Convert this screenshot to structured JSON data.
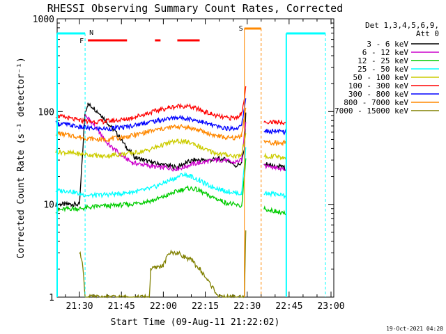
{
  "chart_data": {
    "type": "line",
    "title": "RHESSI Observing Summary Count Rates, Corrected",
    "xlabel": "Start Time (09-Aug-11 21:22:02)",
    "ylabel": "Corrected Count Rate (s⁻¹ detector⁻¹)",
    "y_scale": "log",
    "ylim": [
      1,
      1000
    ],
    "xlim_minutes": [
      21.3,
      22.8
    ],
    "x_ticks": [
      {
        "m": 30,
        "label": "21:30"
      },
      {
        "m": 45,
        "label": "21:45"
      },
      {
        "m": 60,
        "label": "22:00"
      },
      {
        "m": 75,
        "label": "22:15"
      },
      {
        "m": 90,
        "label": "22:30"
      },
      {
        "m": 105,
        "label": "22:45"
      },
      {
        "m": 120,
        "label": "23:00"
      }
    ],
    "y_ticks": [
      {
        "v": 1,
        "label": "1"
      },
      {
        "v": 10,
        "label": "10"
      },
      {
        "v": 100,
        "label": "100"
      },
      {
        "v": 1000,
        "label": "1000"
      }
    ],
    "legend_title": [
      "Det 1,3,4,5,6,9,",
      "Att 0"
    ],
    "series": [
      {
        "name": "3 - 6 keV",
        "color": "#000000",
        "points": [
          [
            21.5,
            10
          ],
          [
            26,
            10
          ],
          [
            27,
            10
          ],
          [
            28,
            10
          ],
          [
            30,
            10
          ],
          [
            32,
            100
          ],
          [
            33,
            120
          ],
          [
            35,
            110
          ],
          [
            38,
            90
          ],
          [
            41,
            70
          ],
          [
            44,
            55
          ],
          [
            47,
            40
          ],
          [
            50,
            32
          ],
          [
            53,
            30
          ],
          [
            56,
            28
          ],
          [
            59,
            27
          ],
          [
            62,
            26
          ],
          [
            65,
            25
          ],
          [
            68,
            28
          ],
          [
            71,
            30
          ],
          [
            74,
            30
          ],
          [
            77,
            30
          ],
          [
            80,
            31
          ],
          [
            83,
            30
          ],
          [
            86,
            26
          ],
          [
            88,
            28
          ],
          [
            89,
            40
          ],
          [
            89.5,
            100
          ]
        ],
        "segments2": [
          [
            96,
            28
          ],
          [
            100,
            26
          ],
          [
            103,
            25
          ],
          [
            104,
            24
          ]
        ]
      },
      {
        "name": "6 - 12 keV",
        "color": "#cc00cc",
        "points": [
          [
            32,
            90
          ],
          [
            34,
            80
          ],
          [
            37,
            60
          ],
          [
            40,
            45
          ],
          [
            43,
            38
          ],
          [
            46,
            32
          ],
          [
            49,
            28
          ],
          [
            52,
            27
          ],
          [
            55,
            26
          ],
          [
            58,
            25
          ],
          [
            61,
            25
          ],
          [
            64,
            24
          ],
          [
            67,
            25
          ],
          [
            70,
            27
          ],
          [
            73,
            28
          ],
          [
            76,
            29
          ],
          [
            79,
            30
          ],
          [
            82,
            30
          ],
          [
            85,
            28
          ],
          [
            88,
            30
          ],
          [
            89.5,
            80
          ]
        ],
        "segments2": [
          [
            96,
            26
          ],
          [
            100,
            25
          ],
          [
            103,
            24
          ],
          [
            104,
            23
          ]
        ]
      },
      {
        "name": "12 - 25 keV",
        "color": "#00cc00",
        "points": [
          [
            21.5,
            8.5
          ],
          [
            26,
            9
          ],
          [
            30,
            9
          ],
          [
            33,
            9.2
          ],
          [
            36,
            9.5
          ],
          [
            40,
            9.6
          ],
          [
            44,
            9.8
          ],
          [
            48,
            10
          ],
          [
            52,
            10.5
          ],
          [
            56,
            11
          ],
          [
            60,
            12
          ],
          [
            64,
            13.5
          ],
          [
            67,
            14.5
          ],
          [
            70,
            15
          ],
          [
            73,
            14
          ],
          [
            76,
            12.5
          ],
          [
            79,
            11.5
          ],
          [
            82,
            10.5
          ],
          [
            85,
            10
          ],
          [
            88,
            9.5
          ],
          [
            89.5,
            30
          ]
        ],
        "segments2": [
          [
            96,
            9
          ],
          [
            100,
            8.5
          ],
          [
            103,
            8
          ],
          [
            104,
            8
          ]
        ]
      },
      {
        "name": "25 - 50 keV",
        "color": "#00ffff",
        "points": [
          [
            21.5,
            14
          ],
          [
            26,
            14
          ],
          [
            30,
            13
          ],
          [
            33,
            12.5
          ],
          [
            36,
            12.5
          ],
          [
            40,
            12.8
          ],
          [
            44,
            13
          ],
          [
            48,
            13.5
          ],
          [
            52,
            14
          ],
          [
            56,
            15
          ],
          [
            60,
            17
          ],
          [
            64,
            19
          ],
          [
            67,
            21
          ],
          [
            70,
            20
          ],
          [
            73,
            18
          ],
          [
            76,
            16
          ],
          [
            79,
            15
          ],
          [
            82,
            14
          ],
          [
            85,
            13.5
          ],
          [
            88,
            13
          ],
          [
            89.5,
            40
          ]
        ],
        "segments2": [
          [
            96,
            13
          ],
          [
            100,
            13
          ],
          [
            103,
            12.5
          ],
          [
            104,
            12
          ]
        ]
      },
      {
        "name": "50 - 100 keV",
        "color": "#cccc00",
        "points": [
          [
            21.5,
            37
          ],
          [
            26,
            36
          ],
          [
            30,
            35
          ],
          [
            34,
            34
          ],
          [
            38,
            33
          ],
          [
            42,
            34
          ],
          [
            46,
            35
          ],
          [
            50,
            36
          ],
          [
            54,
            38
          ],
          [
            58,
            42
          ],
          [
            62,
            46
          ],
          [
            65,
            48
          ],
          [
            68,
            47
          ],
          [
            71,
            45
          ],
          [
            74,
            40
          ],
          [
            77,
            37
          ],
          [
            80,
            35
          ],
          [
            83,
            34
          ],
          [
            86,
            33
          ],
          [
            88,
            34
          ],
          [
            89.5,
            60
          ]
        ],
        "segments2": [
          [
            96,
            33
          ],
          [
            100,
            33
          ],
          [
            103,
            32
          ],
          [
            104,
            32
          ]
        ]
      },
      {
        "name": "100 - 300 keV",
        "color": "#ff0000",
        "points": [
          [
            21.5,
            90
          ],
          [
            26,
            85
          ],
          [
            30,
            80
          ],
          [
            34,
            78
          ],
          [
            38,
            78
          ],
          [
            42,
            80
          ],
          [
            46,
            82
          ],
          [
            50,
            88
          ],
          [
            54,
            95
          ],
          [
            58,
            103
          ],
          [
            62,
            110
          ],
          [
            65,
            114
          ],
          [
            68,
            115
          ],
          [
            71,
            110
          ],
          [
            74,
            102
          ],
          [
            77,
            94
          ],
          [
            80,
            88
          ],
          [
            83,
            85
          ],
          [
            86,
            86
          ],
          [
            88,
            95
          ],
          [
            89.5,
            180
          ]
        ],
        "segments2": [
          [
            96,
            78
          ],
          [
            100,
            77
          ],
          [
            103,
            76
          ],
          [
            104,
            76
          ]
        ]
      },
      {
        "name": "300 - 800 keV",
        "color": "#0000ff",
        "points": [
          [
            21.5,
            75
          ],
          [
            26,
            72
          ],
          [
            30,
            68
          ],
          [
            34,
            66
          ],
          [
            38,
            65
          ],
          [
            42,
            66
          ],
          [
            46,
            68
          ],
          [
            50,
            72
          ],
          [
            54,
            76
          ],
          [
            58,
            80
          ],
          [
            62,
            84
          ],
          [
            65,
            86
          ],
          [
            68,
            85
          ],
          [
            71,
            82
          ],
          [
            74,
            77
          ],
          [
            77,
            72
          ],
          [
            80,
            68
          ],
          [
            83,
            66
          ],
          [
            86,
            66
          ],
          [
            88,
            70
          ],
          [
            89.5,
            140
          ]
        ],
        "segments2": [
          [
            96,
            62
          ],
          [
            100,
            61
          ],
          [
            103,
            60
          ],
          [
            104,
            60
          ]
        ]
      },
      {
        "name": "800 - 7000 keV",
        "color": "#ff8800",
        "points": [
          [
            21.5,
            58
          ],
          [
            26,
            56
          ],
          [
            30,
            53
          ],
          [
            34,
            51
          ],
          [
            38,
            50
          ],
          [
            42,
            51
          ],
          [
            46,
            53
          ],
          [
            50,
            56
          ],
          [
            54,
            60
          ],
          [
            58,
            64
          ],
          [
            62,
            67
          ],
          [
            65,
            69
          ],
          [
            68,
            68
          ],
          [
            71,
            65
          ],
          [
            74,
            61
          ],
          [
            77,
            57
          ],
          [
            80,
            54
          ],
          [
            83,
            52
          ],
          [
            86,
            52
          ],
          [
            88,
            56
          ],
          [
            89.5,
            110
          ]
        ],
        "segments2": [
          [
            96,
            47
          ],
          [
            100,
            46
          ],
          [
            103,
            46
          ],
          [
            104,
            46
          ]
        ]
      },
      {
        "name": "7000 - 15000 keV",
        "color": "#808000",
        "points": [
          [
            30,
            3
          ],
          [
            31,
            2.5
          ],
          [
            32,
            1
          ],
          [
            55,
            1
          ],
          [
            55.5,
            2
          ],
          [
            60,
            2.2
          ],
          [
            62,
            3
          ],
          [
            65,
            3
          ],
          [
            70,
            2.5
          ],
          [
            73,
            2
          ],
          [
            76,
            1.5
          ],
          [
            80,
            1
          ],
          [
            89,
            1
          ],
          [
            89.5,
            5
          ]
        ],
        "segments2": []
      }
    ],
    "flags": [
      {
        "label": "N",
        "color": "#00ffff"
      },
      {
        "label": "F",
        "color": "#ff0000"
      },
      {
        "label": "S",
        "color": "#ff8800"
      }
    ]
  },
  "footer": {
    "date": "19-Oct-2021 04:28"
  }
}
